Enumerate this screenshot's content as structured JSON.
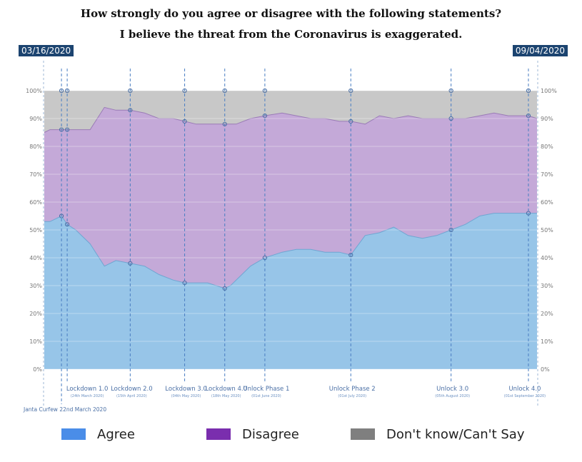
{
  "chart_data": {
    "type": "area",
    "title": "How strongly do you agree or disagree with the following statements?",
    "subtitle": "I believe the threat from the Coronavirus is exaggerated.",
    "start_date": "03/16/2020",
    "end_date": "09/04/2020",
    "y_ticks": [
      "0%",
      "10%",
      "20%",
      "30%",
      "40%",
      "50%",
      "60%",
      "70%",
      "80%",
      "90%",
      "100%"
    ],
    "ylim": [
      0,
      100
    ],
    "x": [
      "2020-03-16",
      "2020-03-18",
      "2020-03-20",
      "2020-03-22",
      "2020-03-24",
      "2020-03-27",
      "2020-04-01",
      "2020-04-06",
      "2020-04-10",
      "2020-04-15",
      "2020-04-20",
      "2020-04-25",
      "2020-04-30",
      "2020-05-04",
      "2020-05-08",
      "2020-05-12",
      "2020-05-15",
      "2020-05-18",
      "2020-05-20",
      "2020-05-22",
      "2020-05-27",
      "2020-06-01",
      "2020-06-07",
      "2020-06-12",
      "2020-06-17",
      "2020-06-22",
      "2020-06-27",
      "2020-07-01",
      "2020-07-06",
      "2020-07-11",
      "2020-07-16",
      "2020-07-21",
      "2020-07-26",
      "2020-07-31",
      "2020-08-05",
      "2020-08-10",
      "2020-08-15",
      "2020-08-20",
      "2020-08-25",
      "2020-09-01",
      "2020-09-04"
    ],
    "series": [
      {
        "name": "Agree",
        "color": "#97c5e8",
        "values": [
          53,
          53,
          54,
          55,
          52,
          50,
          45,
          37,
          39,
          38,
          37,
          34,
          32,
          31,
          31,
          31,
          30,
          29,
          30,
          32,
          37,
          40,
          42,
          43,
          43,
          42,
          42,
          41,
          48,
          49,
          51,
          48,
          47,
          48,
          50,
          52,
          55,
          56,
          56,
          56,
          56
        ]
      },
      {
        "name": "Disagree",
        "color": "#c4a9d8",
        "values": [
          32,
          33,
          32,
          31,
          34,
          36,
          41,
          57,
          54,
          55,
          55,
          56,
          58,
          58,
          57,
          57,
          58,
          59,
          58,
          56,
          53,
          51,
          50,
          48,
          47,
          48,
          47,
          48,
          40,
          42,
          39,
          43,
          43,
          42,
          40,
          38,
          36,
          36,
          35,
          35,
          34
        ]
      },
      {
        "name": "Don't know/Can't Say",
        "color": "#c8c8c8",
        "values": [
          15,
          14,
          14,
          14,
          14,
          14,
          14,
          6,
          7,
          7,
          8,
          10,
          10,
          11,
          12,
          12,
          12,
          12,
          12,
          12,
          10,
          9,
          8,
          9,
          10,
          10,
          11,
          11,
          12,
          9,
          10,
          9,
          10,
          10,
          10,
          10,
          9,
          8,
          9,
          9,
          10
        ]
      }
    ],
    "events": [
      {
        "label": "Janta Curfew",
        "date": "22nd March 2020",
        "x": "2020-03-22"
      },
      {
        "label": "Lockdown 1.0",
        "date": "(24th March 2020)",
        "x": "2020-03-24"
      },
      {
        "label": "Lockdown 2.0",
        "date": "(15th April 2020)",
        "x": "2020-04-15"
      },
      {
        "label": "Lockdown 3.0",
        "date": "(04th May 2020)",
        "x": "2020-05-04"
      },
      {
        "label": "Lockdown 4.0",
        "date": "(18th May 2020)",
        "x": "2020-05-18"
      },
      {
        "label": "Unlock Phase 1",
        "date": "(01st June 2020)",
        "x": "2020-06-01"
      },
      {
        "label": "Unlock Phase 2",
        "date": "(01st July 2020)",
        "x": "2020-07-01"
      },
      {
        "label": "Unlock 3.0",
        "date": "(05th August 2020)",
        "x": "2020-08-05"
      },
      {
        "label": "Unlock 4.0",
        "date": "(01st September 2020)",
        "x": "2020-09-01"
      }
    ],
    "legend": [
      {
        "label": "Agree",
        "color": "#4a8de8"
      },
      {
        "label": "Disagree",
        "color": "#7a2eae"
      },
      {
        "label": "Don't know/Can't Say",
        "color": "#7f7f7f"
      }
    ],
    "legend_position": "bottom"
  }
}
